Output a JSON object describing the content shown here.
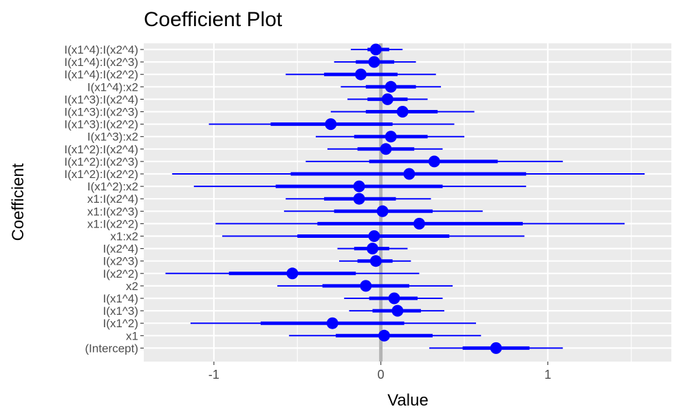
{
  "chart_data": {
    "type": "coefficient-plot",
    "title": "Coefficient Plot",
    "xlabel": "Value",
    "ylabel": "Coefficient",
    "xlim": [
      -1.42,
      1.74
    ],
    "xticks": [
      -1,
      0,
      1
    ],
    "xtick_labels": [
      "-1",
      "0",
      "1"
    ],
    "grid": true,
    "zero_line": true,
    "colors": {
      "point": "#0000ff",
      "interval": "#0000ff",
      "panel": "#ebebeb",
      "grid": "#ffffff",
      "zero_line": "#b3b3b3",
      "tick_label": "#4d4d4d"
    },
    "coefficients": [
      {
        "name": "I(x1^4):I(x2^4)",
        "estimate": -0.03,
        "inner": [
          -0.08,
          0.05
        ],
        "outer": [
          -0.18,
          0.13
        ]
      },
      {
        "name": "I(x1^4):I(x2^3)",
        "estimate": -0.04,
        "inner": [
          -0.15,
          0.08
        ],
        "outer": [
          -0.28,
          0.21
        ]
      },
      {
        "name": "I(x1^4):I(x2^2)",
        "estimate": -0.12,
        "inner": [
          -0.34,
          0.1
        ],
        "outer": [
          -0.57,
          0.33
        ]
      },
      {
        "name": "I(x1^4):x2",
        "estimate": 0.06,
        "inner": [
          -0.09,
          0.21
        ],
        "outer": [
          -0.24,
          0.36
        ]
      },
      {
        "name": "I(x1^3):I(x2^4)",
        "estimate": 0.04,
        "inner": [
          -0.08,
          0.16
        ],
        "outer": [
          -0.2,
          0.28
        ]
      },
      {
        "name": "I(x1^3):I(x2^3)",
        "estimate": 0.13,
        "inner": [
          -0.09,
          0.34
        ],
        "outer": [
          -0.3,
          0.56
        ]
      },
      {
        "name": "I(x1^3):I(x2^2)",
        "estimate": -0.3,
        "inner": [
          -0.66,
          0.07
        ],
        "outer": [
          -1.03,
          0.44
        ]
      },
      {
        "name": "I(x1^3):x2",
        "estimate": 0.06,
        "inner": [
          -0.16,
          0.28
        ],
        "outer": [
          -0.39,
          0.5
        ]
      },
      {
        "name": "I(x1^2):I(x2^4)",
        "estimate": 0.03,
        "inner": [
          -0.14,
          0.2
        ],
        "outer": [
          -0.32,
          0.37
        ]
      },
      {
        "name": "I(x1^2):I(x2^3)",
        "estimate": 0.32,
        "inner": [
          -0.07,
          0.7
        ],
        "outer": [
          -0.45,
          1.09
        ]
      },
      {
        "name": "I(x1^2):I(x2^2)",
        "estimate": 0.17,
        "inner": [
          -0.54,
          0.87
        ],
        "outer": [
          -1.25,
          1.58
        ]
      },
      {
        "name": "I(x1^2):x2",
        "estimate": -0.13,
        "inner": [
          -0.63,
          0.37
        ],
        "outer": [
          -1.12,
          0.87
        ]
      },
      {
        "name": "x1:I(x2^4)",
        "estimate": -0.13,
        "inner": [
          -0.34,
          0.09
        ],
        "outer": [
          -0.57,
          0.3
        ]
      },
      {
        "name": "x1:I(x2^3)",
        "estimate": 0.01,
        "inner": [
          -0.28,
          0.31
        ],
        "outer": [
          -0.58,
          0.61
        ]
      },
      {
        "name": "x1:I(x2^2)",
        "estimate": 0.23,
        "inner": [
          -0.38,
          0.85
        ],
        "outer": [
          -0.99,
          1.46
        ]
      },
      {
        "name": "x1:x2",
        "estimate": -0.04,
        "inner": [
          -0.5,
          0.41
        ],
        "outer": [
          -0.95,
          0.86
        ]
      },
      {
        "name": "I(x2^4)",
        "estimate": -0.05,
        "inner": [
          -0.16,
          0.05
        ],
        "outer": [
          -0.26,
          0.16
        ]
      },
      {
        "name": "I(x2^3)",
        "estimate": -0.03,
        "inner": [
          -0.14,
          0.07
        ],
        "outer": [
          -0.25,
          0.18
        ]
      },
      {
        "name": "I(x2^2)",
        "estimate": -0.53,
        "inner": [
          -0.91,
          -0.15
        ],
        "outer": [
          -1.29,
          0.23
        ]
      },
      {
        "name": "x2",
        "estimate": -0.09,
        "inner": [
          -0.35,
          0.17
        ],
        "outer": [
          -0.62,
          0.43
        ]
      },
      {
        "name": "I(x1^4)",
        "estimate": 0.08,
        "inner": [
          -0.07,
          0.22
        ],
        "outer": [
          -0.22,
          0.37
        ]
      },
      {
        "name": "I(x1^3)",
        "estimate": 0.1,
        "inner": [
          -0.05,
          0.24
        ],
        "outer": [
          -0.19,
          0.38
        ]
      },
      {
        "name": "I(x1^2)",
        "estimate": -0.29,
        "inner": [
          -0.72,
          0.14
        ],
        "outer": [
          -1.14,
          0.57
        ]
      },
      {
        "name": "x1",
        "estimate": 0.02,
        "inner": [
          -0.27,
          0.31
        ],
        "outer": [
          -0.55,
          0.6
        ]
      },
      {
        "name": "(Intercept)",
        "estimate": 0.69,
        "inner": [
          0.49,
          0.89
        ],
        "outer": [
          0.29,
          1.09
        ]
      }
    ]
  }
}
